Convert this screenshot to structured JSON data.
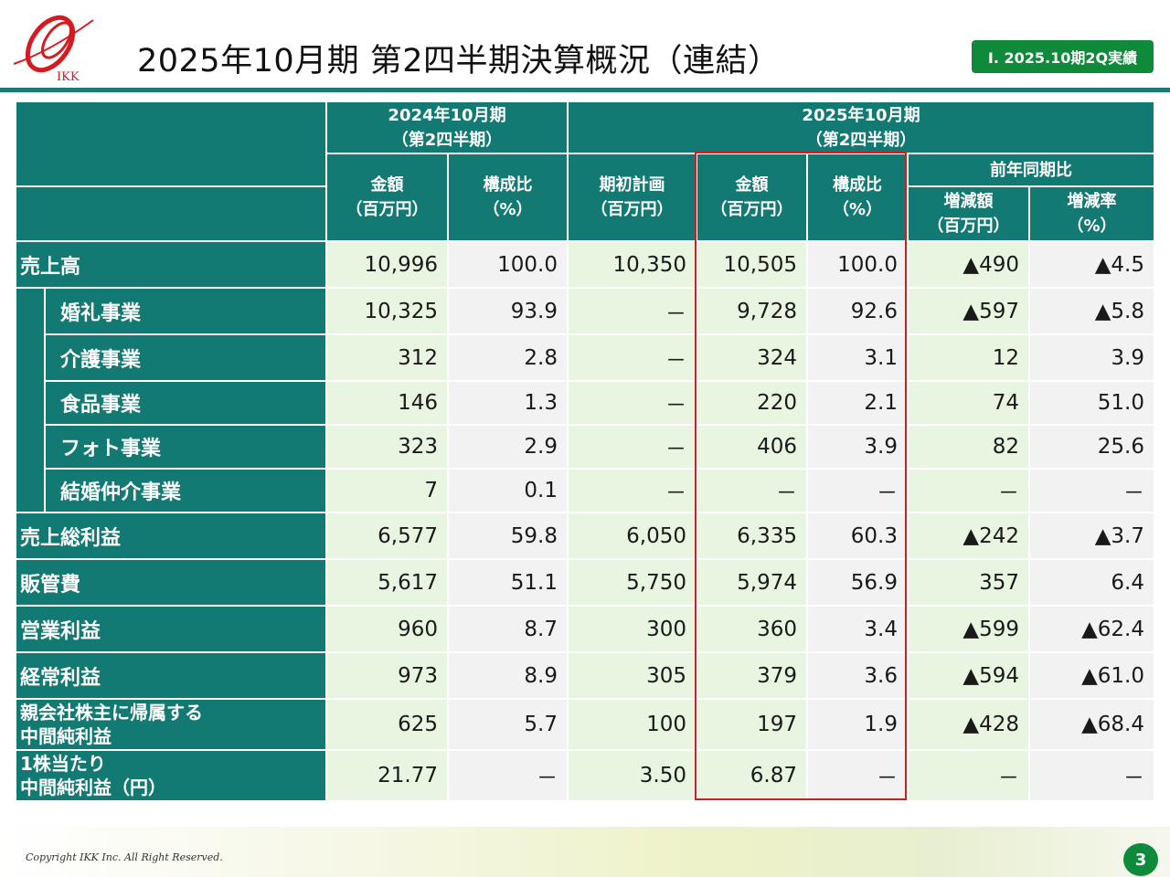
{
  "header": {
    "title": "2025年10月期 第2四半期決算概況（連結）",
    "badge": "Ⅰ. 2025.10期2Q実績",
    "logo_text": "IKK"
  },
  "table": {
    "group_2024": "2024年10月期\n（第2四半期）",
    "group_2025": "2025年10月期\n（第2四半期）",
    "group_yoy": "前年同期比",
    "columns": {
      "amount_2024": "金額\n（百万円）",
      "ratio_2024": "構成比\n（%）",
      "plan": "期初計画\n（百万円）",
      "amount_2025": "金額\n（百万円）",
      "ratio_2025": "構成比\n（%）",
      "change_amount": "増減額\n（百万円）",
      "change_rate": "増減率\n（%）"
    },
    "rows": [
      {
        "label": "売上高",
        "values": [
          "10,996",
          "100.0",
          "10,350",
          "10,505",
          "100.0",
          "▲490",
          "▲4.5"
        ]
      },
      {
        "label": "婚礼事業",
        "values": [
          "10,325",
          "93.9",
          "－",
          "9,728",
          "92.6",
          "▲597",
          "▲5.8"
        ]
      },
      {
        "label": "介護事業",
        "values": [
          "312",
          "2.8",
          "－",
          "324",
          "3.1",
          "12",
          "3.9"
        ]
      },
      {
        "label": "食品事業",
        "values": [
          "146",
          "1.3",
          "－",
          "220",
          "2.1",
          "74",
          "51.0"
        ]
      },
      {
        "label": "フォト事業",
        "values": [
          "323",
          "2.9",
          "－",
          "406",
          "3.9",
          "82",
          "25.6"
        ]
      },
      {
        "label": "結婚仲介事業",
        "values": [
          "7",
          "0.1",
          "－",
          "－",
          "－",
          "－",
          "－"
        ]
      },
      {
        "label": "売上総利益",
        "values": [
          "6,577",
          "59.8",
          "6,050",
          "6,335",
          "60.3",
          "▲242",
          "▲3.7"
        ]
      },
      {
        "label": "販管費",
        "values": [
          "5,617",
          "51.1",
          "5,750",
          "5,974",
          "56.9",
          "357",
          "6.4"
        ]
      },
      {
        "label": "営業利益",
        "values": [
          "960",
          "8.7",
          "300",
          "360",
          "3.4",
          "▲599",
          "▲62.4"
        ]
      },
      {
        "label": "経常利益",
        "values": [
          "973",
          "8.9",
          "305",
          "379",
          "3.6",
          "▲594",
          "▲61.0"
        ]
      },
      {
        "label": "親会社株主に帰属する\n中間純利益",
        "values": [
          "625",
          "5.7",
          "100",
          "197",
          "1.9",
          "▲428",
          "▲68.4"
        ]
      },
      {
        "label": "1株当たり\n中間純利益（円）",
        "values": [
          "21.77",
          "－",
          "3.50",
          "6.87",
          "－",
          "－",
          "－"
        ]
      }
    ]
  },
  "footer": {
    "copyright": "Copyright IKK Inc. All Right Reserved.",
    "page_number": "3"
  },
  "colors": {
    "teal": "#137a73",
    "green_badge": "#0f8a3a",
    "highlight_red": "#d71920",
    "cell_green": "#e8f5e0",
    "cell_gray": "#f2f2f2"
  }
}
